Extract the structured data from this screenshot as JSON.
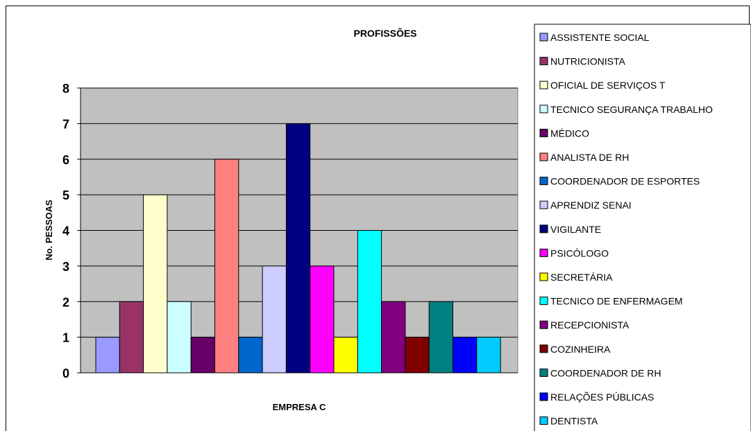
{
  "chart_data": {
    "type": "bar",
    "title": "PROFISSÕES",
    "xlabel": "EMPRESA C",
    "ylabel": "No. PESSOAS",
    "category": "EMPRESA C",
    "ylim": [
      0,
      8
    ],
    "yticks": [
      "0",
      "1",
      "2",
      "3",
      "4",
      "5",
      "6",
      "7",
      "8"
    ],
    "grid": true,
    "legend_position": "right",
    "series": [
      {
        "name": "ASSISTENTE SOCIAL",
        "value": 1,
        "color": "#9999ff"
      },
      {
        "name": "NUTRICIONISTA",
        "value": 2,
        "color": "#993366"
      },
      {
        "name": "OFICIAL DE SERVIÇOS T",
        "value": 5,
        "color": "#ffffcc"
      },
      {
        "name": "TECNICO SEGURANÇA TRABALHO",
        "value": 2,
        "color": "#ccffff"
      },
      {
        "name": "MÉDICO",
        "value": 1,
        "color": "#660066"
      },
      {
        "name": "ANALISTA DE RH",
        "value": 6,
        "color": "#ff8080"
      },
      {
        "name": "COORDENADOR DE ESPORTES",
        "value": 1,
        "color": "#0066cc"
      },
      {
        "name": "APRENDIZ SENAI",
        "value": 3,
        "color": "#ccccff"
      },
      {
        "name": "VIGILANTE",
        "value": 7,
        "color": "#000080"
      },
      {
        "name": "PSICÓLOGO",
        "value": 3,
        "color": "#ff00ff"
      },
      {
        "name": "SECRETÁRIA",
        "value": 1,
        "color": "#ffff00"
      },
      {
        "name": "TECNICO DE ENFERMAGEM",
        "value": 4,
        "color": "#00ffff"
      },
      {
        "name": "RECEPCIONISTA",
        "value": 2,
        "color": "#800080"
      },
      {
        "name": "COZINHEIRA",
        "value": 1,
        "color": "#800000"
      },
      {
        "name": "COORDENADOR DE RH",
        "value": 2,
        "color": "#008080"
      },
      {
        "name": "RELAÇÕES PÚBLICAS",
        "value": 1,
        "color": "#0000ff"
      },
      {
        "name": "DENTISTA",
        "value": 1,
        "color": "#00ccff"
      }
    ],
    "plot_background": "#c0c0c0"
  }
}
